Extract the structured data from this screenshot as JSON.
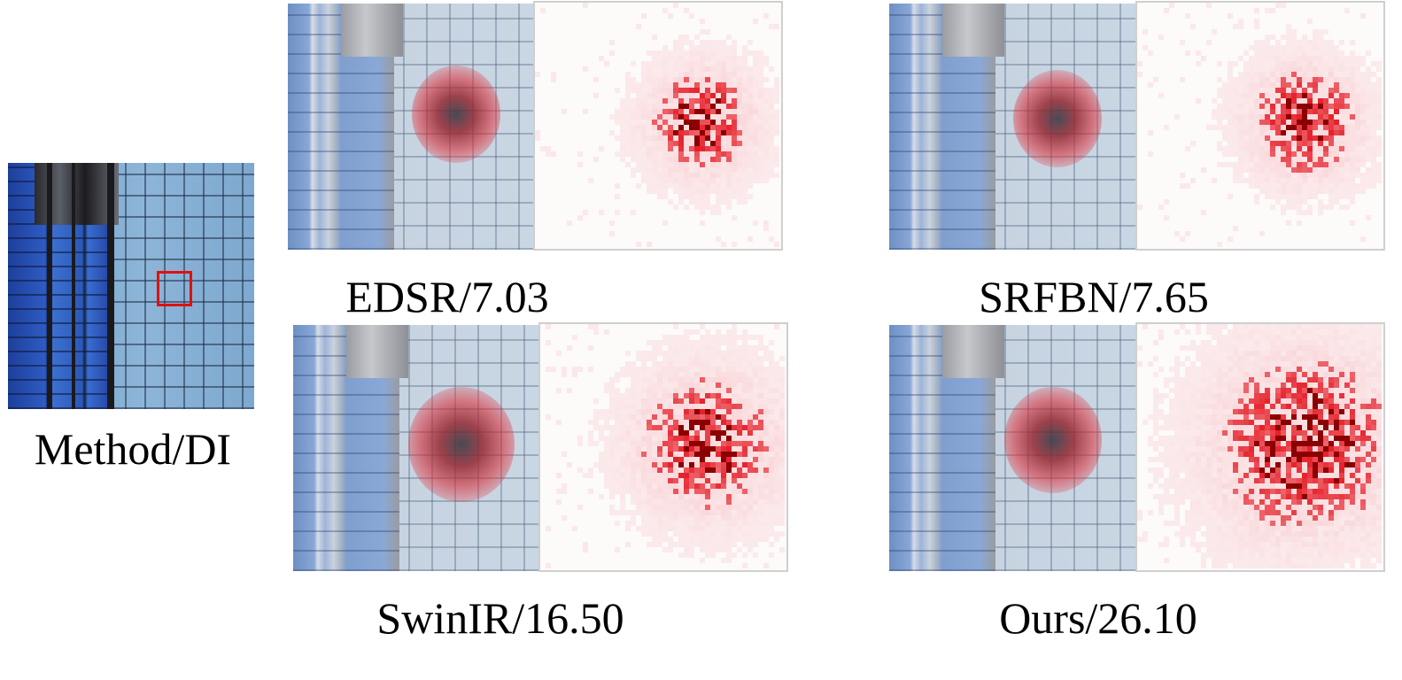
{
  "reference": {
    "caption": "Method/DI"
  },
  "panels": [
    {
      "id": "edsr",
      "caption": "EDSR/7.03",
      "method": "EDSR",
      "di": 7.03,
      "spread": 0.22,
      "seed": 7
    },
    {
      "id": "srfbn",
      "caption": "SRFBN/7.65",
      "method": "SRFBN",
      "di": 7.65,
      "spread": 0.24,
      "seed": 13
    },
    {
      "id": "swinir",
      "caption": "SwinIR/16.50",
      "method": "SwinIR",
      "di": 16.5,
      "spread": 0.38,
      "seed": 29
    },
    {
      "id": "ours",
      "caption": "Ours/26.10",
      "method": "Ours",
      "di": 26.1,
      "spread": 0.6,
      "seed": 41
    }
  ],
  "colors": {
    "roi_box": "#e01010",
    "heat_max": "#8b0000",
    "heat_mid": "#e6202a",
    "heat_low": "#f8c8cc"
  }
}
